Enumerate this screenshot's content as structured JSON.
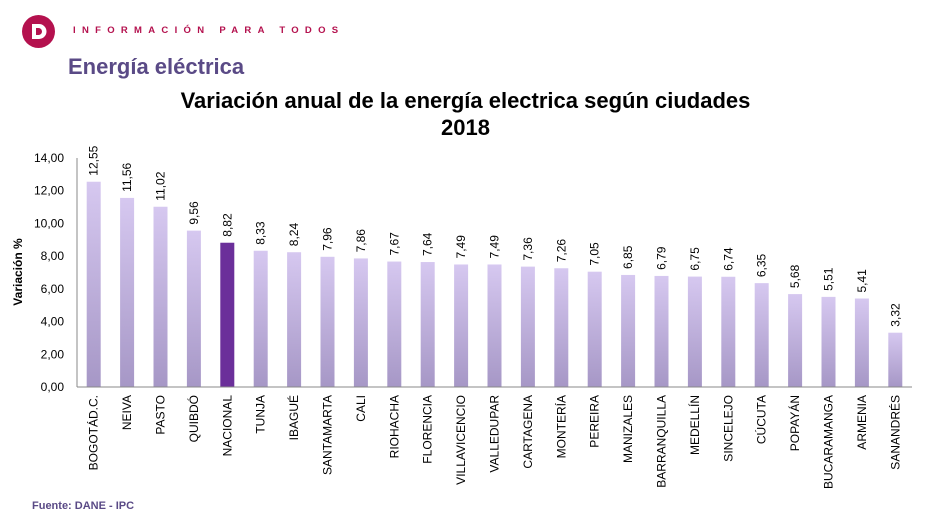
{
  "header": {
    "logo_icon": "dane-logo-icon",
    "tagline": "INFORMACIÓN PARA TODOS",
    "section_title": "Energía eléctrica"
  },
  "footer": {
    "source": "Fuente: DANE - IPC"
  },
  "colors": {
    "brand": "#b4114e",
    "section": "#5a4a86",
    "bar_top": "#d6c8f0",
    "bar_bottom": "#a697c6",
    "highlight_bar": "#6b2f9a"
  },
  "chart_data": {
    "type": "bar",
    "title": "Variación anual de la energía electrica según ciudades",
    "subtitle": "2018",
    "xlabel": "",
    "ylabel": "Variación %",
    "ylim": [
      0,
      14
    ],
    "yticks": [
      "0,00",
      "2,00",
      "4,00",
      "6,00",
      "8,00",
      "10,00",
      "12,00",
      "14,00"
    ],
    "grid": false,
    "legend": "none",
    "highlight": "NACIONAL",
    "categories": [
      "BOGOTÁD.C.",
      "NEIVA",
      "PASTO",
      "QUIBDÓ",
      "NACIONAL",
      "TUNJA",
      "IBAGUÉ",
      "SANTAMARTA",
      "CALI",
      "RIOHACHA",
      "FLORENCIA",
      "VILLAVICENCIO",
      "VALLEDUPAR",
      "CARTAGENA",
      "MONTERÍA",
      "PEREIRA",
      "MANIZALES",
      "BARRANQUILLA",
      "MEDELLÍN",
      "SINCELEJO",
      "CÚCUTA",
      "POPAYÁN",
      "BUCARAMANGA",
      "ARMENIA",
      "SANANDRÉS"
    ],
    "values": [
      12.55,
      11.56,
      11.02,
      9.56,
      8.82,
      8.33,
      8.24,
      7.96,
      7.86,
      7.67,
      7.64,
      7.49,
      7.49,
      7.36,
      7.26,
      7.05,
      6.85,
      6.79,
      6.75,
      6.74,
      6.35,
      5.68,
      5.51,
      5.41,
      3.32
    ],
    "value_labels": [
      "12,55",
      "11,56",
      "11,02",
      "9,56",
      "8,82",
      "8,33",
      "8,24",
      "7,96",
      "7,86",
      "7,67",
      "7,64",
      "7,49",
      "7,49",
      "7,36",
      "7,26",
      "7,05",
      "6,85",
      "6,79",
      "6,75",
      "6,74",
      "6,35",
      "5,68",
      "5,51",
      "5,41",
      "3,32"
    ]
  }
}
